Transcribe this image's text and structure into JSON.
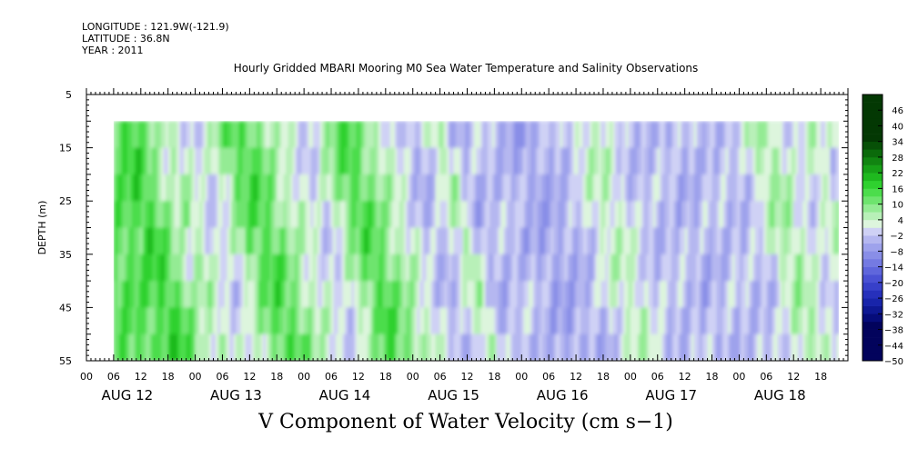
{
  "header": {
    "longitude": "LONGITUDE : 121.9W(-121.9)",
    "latitude": "LATITUDE : 36.8N",
    "year": "YEAR : 2011"
  },
  "colors": {
    "positive_scale": [
      "#ddf5dd",
      "#b8f0b8",
      "#94eb94",
      "#6ee46e",
      "#4cdd4c",
      "#2fd12f",
      "#1fb91f",
      "#17a017",
      "#118511",
      "#0b6a0b",
      "#075007",
      "#033803"
    ],
    "negative_scale": [
      "#cfd1f5",
      "#b5b7f0",
      "#9ea2ec",
      "#898ee7",
      "#747ae2",
      "#5f66dc",
      "#4a51d4",
      "#3740c9",
      "#2630bb",
      "#1824aa",
      "#0e1893",
      "#060c7a",
      "#02035c"
    ],
    "field_green": "#6fe07a",
    "field_blue": "#a1a8ea"
  },
  "chart_data": {
    "type": "heatmap",
    "title": "Hourly Gridded MBARI Mooring M0 Sea Water Temperature and Salinity Observations",
    "xlabel": "V Component of Water Velocity (cm s−1)",
    "ylabel": "DEPTH (m)",
    "x_unit": "hour",
    "xlim": [
      0,
      168
    ],
    "data_start_hour": 6,
    "data_end_hour": 166,
    "ylim": [
      5,
      55
    ],
    "y_inverted": true,
    "data_depth_range": [
      10,
      55
    ],
    "y_ticks": [
      "5",
      "15",
      "25",
      "35",
      "45",
      "55"
    ],
    "x_hour_ticks": [
      "00",
      "06",
      "12",
      "18"
    ],
    "x_days": [
      "AUG 12",
      "AUG 13",
      "AUG 14",
      "AUG 15",
      "AUG 16",
      "AUG 17",
      "AUG 18"
    ],
    "colorbar_labels": [
      "46",
      "40",
      "34",
      "28",
      "22",
      "16",
      "10",
      "4",
      "−2",
      "−8",
      "−14",
      "−20",
      "−26",
      "−32",
      "−38",
      "−44",
      "−50"
    ],
    "colorbar_range": [
      -50,
      52
    ],
    "colorbar_step": 3,
    "field_profile": {
      "hours": [
        6,
        8,
        10,
        12,
        14,
        16,
        18,
        20,
        24,
        28,
        30,
        34,
        38,
        40,
        44,
        48,
        50,
        54,
        56,
        58,
        62,
        66,
        70,
        72,
        76,
        78,
        80,
        82,
        86,
        90,
        94,
        96,
        100,
        104,
        108,
        112,
        116,
        120,
        124,
        128,
        132,
        136,
        140,
        144,
        146,
        150,
        152,
        156,
        160,
        163,
        166
      ],
      "values": [
        12,
        16,
        14,
        10,
        6,
        2,
        6,
        2,
        -2,
        4,
        10,
        14,
        8,
        4,
        2,
        -3,
        2,
        10,
        14,
        12,
        6,
        2,
        -4,
        -5,
        2,
        6,
        -2,
        -5,
        -3,
        -4,
        -6,
        -7,
        -5,
        -4,
        2,
        4,
        -2,
        -4,
        -3,
        -5,
        -4,
        -3,
        -4,
        -2,
        4,
        6,
        2,
        -2,
        4,
        -2,
        6
      ]
    }
  }
}
